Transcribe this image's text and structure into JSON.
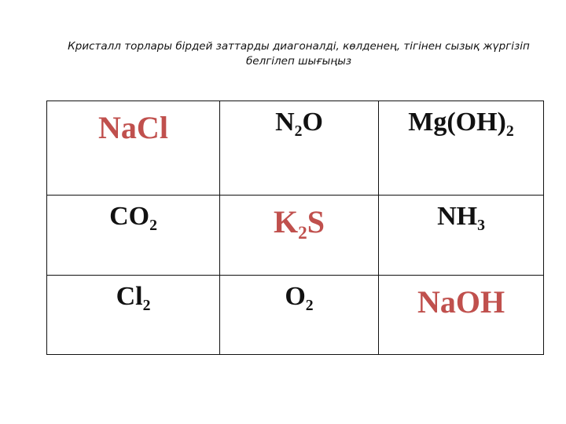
{
  "instruction": "Кристалл торлары бірдей заттарды диагоналді, көлденең, тігінен сызық жүргізіп белгілеп шығыңыз",
  "colors": {
    "highlight": "#c0504d",
    "normal": "#111111"
  },
  "table": {
    "rows": [
      [
        {
          "base": "NaCl",
          "sub": "",
          "highlight": true
        },
        {
          "base": "N",
          "sub": "2",
          "tail": "O",
          "highlight": false
        },
        {
          "base": "Mg(OH)",
          "sub": "2",
          "highlight": false
        }
      ],
      [
        {
          "base": "CO",
          "sub": "2",
          "highlight": false
        },
        {
          "base": "K",
          "sub": "2",
          "tail": "S",
          "highlight": true
        },
        {
          "base": "NH",
          "sub": "3",
          "highlight": false
        }
      ],
      [
        {
          "base": "Cl",
          "sub": "2",
          "highlight": false
        },
        {
          "base": "O",
          "sub": "2",
          "highlight": false
        },
        {
          "base": "NaOH",
          "sub": "",
          "highlight": true
        }
      ]
    ]
  }
}
